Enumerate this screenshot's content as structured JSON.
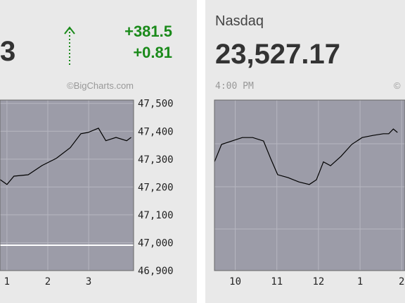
{
  "chart_data": [
    {
      "type": "line",
      "headline": "3",
      "change": "+381.5",
      "change_pct": "+0.81",
      "source": "©BigCharts.com",
      "x": [
        12.83,
        13.0,
        13.17,
        13.52,
        13.86,
        14.21,
        14.55,
        14.81,
        14.99,
        15.24,
        15.42,
        15.67,
        15.93,
        16.04
      ],
      "values": [
        47227,
        47209,
        47239,
        47244,
        47277,
        47303,
        47341,
        47391,
        47396,
        47411,
        47366,
        47378,
        47366,
        47378
      ],
      "reference": 46991,
      "color": "#000000",
      "xlim": [
        12.83,
        16.1
      ],
      "xticks": [
        {
          "value": 13,
          "label": "1"
        },
        {
          "value": 14,
          "label": "2"
        },
        {
          "value": 15,
          "label": "3"
        }
      ],
      "ylim": [
        46900,
        47512
      ],
      "yticks": [
        {
          "value": 47500,
          "label": "47,500"
        },
        {
          "value": 47400,
          "label": "47,400"
        },
        {
          "value": 47300,
          "label": "47,300"
        },
        {
          "value": 47200,
          "label": "47,200"
        },
        {
          "value": 47100,
          "label": "47,100"
        },
        {
          "value": 47000,
          "label": "47,000"
        },
        {
          "value": 46900,
          "label": "46,900"
        }
      ],
      "grid": true
    },
    {
      "type": "line",
      "title": "Nasdaq",
      "headline": "23,527.17",
      "time": "4:00 PM",
      "source": "©",
      "x": [
        9.5,
        9.67,
        9.92,
        10.17,
        10.42,
        10.68,
        10.85,
        11.02,
        11.27,
        11.53,
        11.78,
        11.95,
        12.12,
        12.29,
        12.54,
        12.8,
        13.05,
        13.31,
        13.56,
        13.69,
        13.8,
        13.9
      ],
      "values": [
        23555,
        23596,
        23604,
        23612,
        23612,
        23604,
        23563,
        23525,
        23518,
        23508,
        23502,
        23513,
        23555,
        23546,
        23568,
        23596,
        23612,
        23617,
        23621,
        23621,
        23632,
        23624
      ],
      "color": "#000000",
      "xlim": [
        9.5,
        14.08
      ],
      "xticks": [
        10,
        11,
        12,
        {
          "value": 13,
          "label": "1"
        },
        {
          "value": 14,
          "label": "2"
        }
      ],
      "ylim": [
        23300,
        23700
      ],
      "grid": true
    }
  ]
}
